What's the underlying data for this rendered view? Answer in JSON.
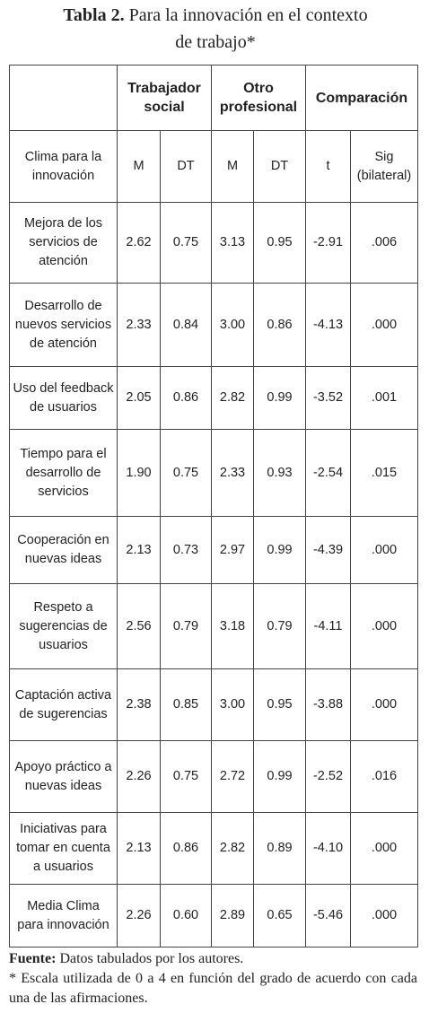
{
  "title": {
    "label": "Tabla 2.",
    "text": "Para la innovación en el contexto de trabajo*"
  },
  "table": {
    "group_headers": [
      "Trabajador social",
      "Otro profesional",
      "Comparación"
    ],
    "column_headers": [
      "Clima para la innovación",
      "M",
      "DT",
      "M",
      "DT",
      "t",
      "Sig (bilateral)"
    ],
    "rows": [
      [
        "Mejora de los servicios de atención",
        "2.62",
        "0.75",
        "3.13",
        "0.95",
        "-2.91",
        ".006"
      ],
      [
        "Desarrollo de nuevos servicios de atención",
        "2.33",
        "0.84",
        "3.00",
        "0.86",
        "-4.13",
        ".000"
      ],
      [
        "Uso del feedback de usuarios",
        "2.05",
        "0.86",
        "2.82",
        "0.99",
        "-3.52",
        ".001"
      ],
      [
        "Tiempo para el desarrollo de servicios",
        "1.90",
        "0.75",
        "2.33",
        "0.93",
        "-2.54",
        ".015"
      ],
      [
        "Cooperación en nuevas ideas",
        "2.13",
        "0.73",
        "2.97",
        "0.99",
        "-4.39",
        ".000"
      ],
      [
        "Respeto a sugerencias de usuarios",
        "2.56",
        "0.79",
        "3.18",
        "0.79",
        "-4.11",
        ".000"
      ],
      [
        "Captación activa de sugerencias",
        "2.38",
        "0.85",
        "3.00",
        "0.95",
        "-3.88",
        ".000"
      ],
      [
        "Apoyo práctico a nuevas ideas",
        "2.26",
        "0.75",
        "2.72",
        "0.99",
        "-2.52",
        ".016"
      ],
      [
        "Iniciativas para tomar en cuenta a usuarios",
        "2.13",
        "0.86",
        "2.82",
        "0.89",
        "-4.10",
        ".000"
      ],
      [
        "Media Clima para innovación",
        "2.26",
        "0.60",
        "2.89",
        "0.65",
        "-5.46",
        ".000"
      ]
    ]
  },
  "footer": {
    "source_label": "Fuente:",
    "source_text": "Datos tabulados por los autores.",
    "note": "* Escala utilizada de 0 a 4 en función del grado de acuerdo con cada una de las afirmaciones."
  }
}
